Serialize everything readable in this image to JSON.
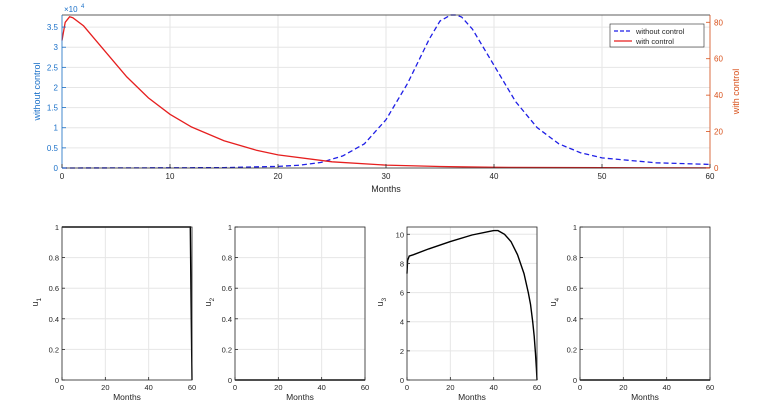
{
  "chart_data": [
    {
      "type": "line",
      "xlabel": "Months",
      "ylabel_left": "without control",
      "ylabel_right": "with control",
      "exponent_label": "×10",
      "exponent_power": "4",
      "xlim": [
        0,
        60
      ],
      "ylim_left": [
        0,
        3.8
      ],
      "ylim_right": [
        0,
        84
      ],
      "x_ticks": [
        0,
        10,
        20,
        30,
        40,
        50,
        60
      ],
      "y_ticks_left": [
        0,
        0.5,
        1,
        1.5,
        2,
        2.5,
        3,
        3.5
      ],
      "y_ticks_right": [
        0,
        20,
        40,
        60,
        80
      ],
      "grid": true,
      "legend_position": "top-right",
      "colors": {
        "without_control": "#1f1fe6",
        "with_control": "#e61f1f",
        "left_axis": "#1a70c8",
        "right_axis": "#d8501a"
      },
      "series": [
        {
          "name": "without control",
          "axis": "left",
          "style": "dashed",
          "x": [
            0,
            5,
            10,
            15,
            20,
            22,
            24,
            26,
            28,
            30,
            32,
            34,
            35,
            36,
            36.5,
            37,
            38,
            40,
            42,
            44,
            46,
            48,
            50,
            55,
            60
          ],
          "y": [
            0,
            0.002,
            0.004,
            0.01,
            0.04,
            0.07,
            0.14,
            0.3,
            0.6,
            1.2,
            2.1,
            3.2,
            3.65,
            3.8,
            3.8,
            3.75,
            3.45,
            2.55,
            1.65,
            1.0,
            0.6,
            0.38,
            0.25,
            0.13,
            0.09
          ]
        },
        {
          "name": "with control",
          "axis": "right",
          "style": "solid",
          "x": [
            0,
            0.3,
            0.7,
            1,
            2,
            3,
            4,
            5,
            6,
            8,
            10,
            12,
            15,
            18,
            20,
            25,
            30,
            35,
            40,
            50,
            60
          ],
          "y": [
            70,
            80,
            83,
            82.5,
            78,
            71,
            64,
            57,
            50,
            38.5,
            29.5,
            22.5,
            15,
            9.8,
            7.2,
            3.4,
            1.6,
            0.8,
            0.4,
            0.15,
            0.05
          ]
        }
      ]
    },
    {
      "type": "line",
      "xlabel": "Months",
      "ylabel": "u",
      "ylabel_sub": "1",
      "xlim": [
        0,
        60
      ],
      "ylim": [
        0,
        1
      ],
      "x_ticks": [
        0,
        20,
        40,
        60
      ],
      "y_ticks": [
        0,
        0.2,
        0.4,
        0.6,
        0.8,
        1
      ],
      "grid": true,
      "series": [
        {
          "x": [
            0,
            59.2,
            59.6,
            60
          ],
          "y": [
            1,
            1,
            0.5,
            0
          ]
        }
      ]
    },
    {
      "type": "line",
      "xlabel": "Months",
      "ylabel": "u",
      "ylabel_sub": "2",
      "xlim": [
        0,
        60
      ],
      "ylim": [
        0,
        1
      ],
      "x_ticks": [
        0,
        20,
        40,
        60
      ],
      "y_ticks": [
        0,
        0.2,
        0.4,
        0.6,
        0.8,
        1
      ],
      "grid": true,
      "series": [
        {
          "x": [
            0,
            60
          ],
          "y": [
            0,
            0
          ]
        }
      ]
    },
    {
      "type": "line",
      "xlabel": "Months",
      "ylabel": "u",
      "ylabel_sub": "3",
      "xlim": [
        0,
        60
      ],
      "ylim": [
        0,
        10.5
      ],
      "x_ticks": [
        0,
        20,
        40,
        60
      ],
      "y_ticks": [
        0,
        2,
        4,
        6,
        8,
        10
      ],
      "grid": true,
      "series": [
        {
          "x": [
            0,
            0.3,
            1,
            3,
            10,
            20,
            30,
            38,
            40,
            42,
            45,
            48,
            51,
            54,
            56,
            57,
            58,
            58.7,
            59.3,
            59.7,
            60
          ],
          "y": [
            7.3,
            8.2,
            8.5,
            8.6,
            9.0,
            9.5,
            9.95,
            10.2,
            10.25,
            10.25,
            10.0,
            9.5,
            8.6,
            7.3,
            6.0,
            5.2,
            4.0,
            3.0,
            1.8,
            0.8,
            0
          ]
        }
      ]
    },
    {
      "type": "line",
      "xlabel": "Months",
      "ylabel": "u",
      "ylabel_sub": "4",
      "xlim": [
        0,
        60
      ],
      "ylim": [
        0,
        1
      ],
      "x_ticks": [
        0,
        20,
        40,
        60
      ],
      "y_ticks": [
        0,
        0.2,
        0.4,
        0.6,
        0.8,
        1
      ],
      "grid": true,
      "series": [
        {
          "x": [
            0,
            60
          ],
          "y": [
            0,
            0
          ]
        }
      ]
    }
  ]
}
